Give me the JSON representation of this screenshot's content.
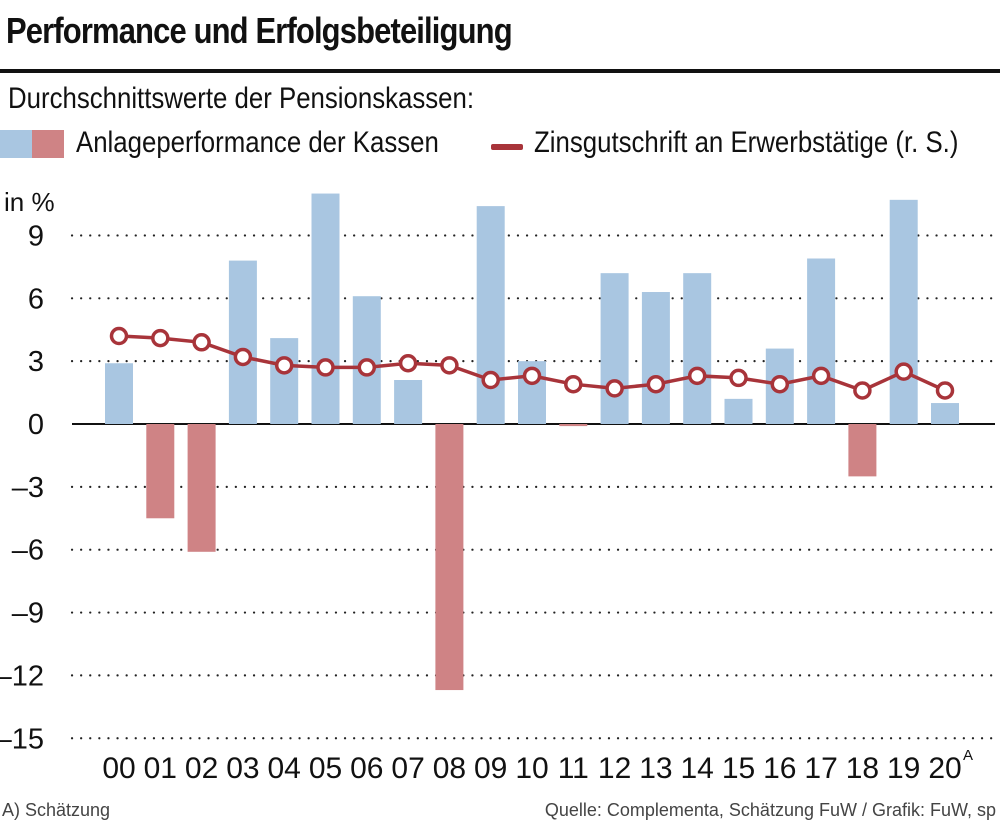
{
  "title": "Performance und Erfolgsbeteiligung",
  "subtitle": "Durchschnittswerte der Pensionskassen:",
  "legend": {
    "bars_label": "Anlageperformance der Kassen",
    "line_label": "Zinsgutschrift an Erwerbstätige (r. S.)"
  },
  "colors": {
    "positive_bar": "#a9c6e1",
    "negative_bar": "#cf8385",
    "line": "#a8343a",
    "marker_fill": "#ffffff"
  },
  "footer": {
    "note": "A) Schätzung",
    "source": "Quelle: Complementa, Schätzung FuW / Grafik: FuW, sp"
  },
  "chart_data": {
    "type": "bar",
    "ylabel": "in %",
    "ylim": [
      -15,
      12
    ],
    "yticks": [
      9,
      6,
      3,
      0,
      -3,
      -6,
      -9,
      -12,
      -15
    ],
    "ytick_labels": [
      "9",
      "6",
      "3",
      "0",
      "–3",
      "–6",
      "–9",
      "–12",
      "–15"
    ],
    "categories": [
      "00",
      "01",
      "02",
      "03",
      "04",
      "05",
      "06",
      "07",
      "08",
      "09",
      "10",
      "11",
      "12",
      "13",
      "14",
      "15",
      "16",
      "17",
      "18",
      "19",
      "20"
    ],
    "category_notes": {
      "20": "A"
    },
    "series": [
      {
        "name": "Anlageperformance der Kassen",
        "type": "bar",
        "values": [
          2.9,
          -4.5,
          -6.1,
          7.8,
          4.1,
          11.0,
          6.1,
          2.1,
          -12.7,
          10.4,
          3.0,
          -0.1,
          7.2,
          6.3,
          7.2,
          1.2,
          3.6,
          7.9,
          -2.5,
          10.7,
          1.0
        ]
      },
      {
        "name": "Zinsgutschrift an Erwerbstätige (r. S.)",
        "type": "line",
        "values": [
          4.2,
          4.1,
          3.9,
          3.2,
          2.8,
          2.7,
          2.7,
          2.9,
          2.8,
          2.1,
          2.3,
          1.9,
          1.7,
          1.9,
          2.3,
          2.2,
          1.9,
          2.3,
          1.6,
          2.5,
          1.6
        ]
      }
    ]
  }
}
